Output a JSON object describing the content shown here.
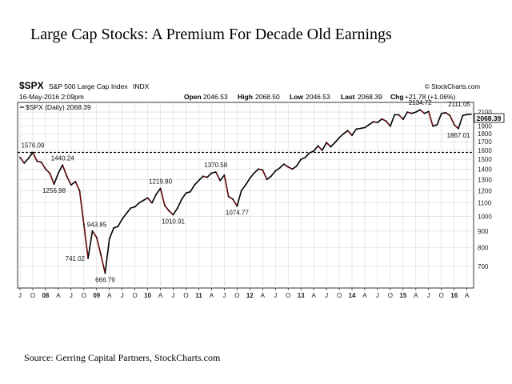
{
  "slide": {
    "title": "Large Cap Stocks: A Premium For Decade Old Earnings",
    "source": "Source: Gerring Capital Partners, StockCharts.com"
  },
  "header": {
    "symbol": "$SPX",
    "name": "S&P 500 Large Cap Index",
    "exchange": "INDX",
    "watermark": "© StockCharts.com",
    "date": "16-May-2016 2:09pm",
    "open_label": "Open",
    "open_value": "2046.53",
    "high_label": "High",
    "high_value": "2068.50",
    "low_label": "Low",
    "low_value": "2046.53",
    "last_label": "Last",
    "last_value": "2068.39",
    "chg_label": "Chg",
    "chg_value": "+21.78 (+1.06%)",
    "legend": "$SPX (Daily) 2068.39",
    "price_box": "2068.39"
  },
  "colors": {
    "price_line": "#000000",
    "down_days": "#cc0000",
    "grid": "#d8d8d8",
    "reference_line": "#000000",
    "price_box": "#ffffff"
  },
  "chart_data": {
    "type": "line",
    "scale": "log",
    "ylim": [
      600,
      2250
    ],
    "xlim": [
      "2007-07",
      "2016-05"
    ],
    "grid": true,
    "reference_line": 1576.09,
    "y_ticks": [
      700,
      800,
      900,
      1000,
      1100,
      1200,
      1300,
      1400,
      1500,
      1600,
      1700,
      1800,
      1900,
      2000,
      2100
    ],
    "x_tick_labels": [
      {
        "label": "J",
        "date": "2007-07",
        "bold": false
      },
      {
        "label": "O",
        "date": "2007-10",
        "bold": false
      },
      {
        "label": "08",
        "date": "2008-01",
        "bold": true
      },
      {
        "label": "A",
        "date": "2008-04",
        "bold": false
      },
      {
        "label": "J",
        "date": "2008-07",
        "bold": false
      },
      {
        "label": "O",
        "date": "2008-10",
        "bold": false
      },
      {
        "label": "09",
        "date": "2009-01",
        "bold": true
      },
      {
        "label": "A",
        "date": "2009-04",
        "bold": false
      },
      {
        "label": "J",
        "date": "2009-07",
        "bold": false
      },
      {
        "label": "O",
        "date": "2009-10",
        "bold": false
      },
      {
        "label": "10",
        "date": "2010-01",
        "bold": true
      },
      {
        "label": "A",
        "date": "2010-04",
        "bold": false
      },
      {
        "label": "J",
        "date": "2010-07",
        "bold": false
      },
      {
        "label": "O",
        "date": "2010-10",
        "bold": false
      },
      {
        "label": "11",
        "date": "2011-01",
        "bold": true
      },
      {
        "label": "A",
        "date": "2011-04",
        "bold": false
      },
      {
        "label": "J",
        "date": "2011-07",
        "bold": false
      },
      {
        "label": "O",
        "date": "2011-10",
        "bold": false
      },
      {
        "label": "12",
        "date": "2012-01",
        "bold": true
      },
      {
        "label": "A",
        "date": "2012-04",
        "bold": false
      },
      {
        "label": "J",
        "date": "2012-07",
        "bold": false
      },
      {
        "label": "O",
        "date": "2012-10",
        "bold": false
      },
      {
        "label": "13",
        "date": "2013-01",
        "bold": true
      },
      {
        "label": "A",
        "date": "2013-04",
        "bold": false
      },
      {
        "label": "J",
        "date": "2013-07",
        "bold": false
      },
      {
        "label": "O",
        "date": "2013-10",
        "bold": false
      },
      {
        "label": "14",
        "date": "2014-01",
        "bold": true
      },
      {
        "label": "A",
        "date": "2014-04",
        "bold": false
      },
      {
        "label": "J",
        "date": "2014-07",
        "bold": false
      },
      {
        "label": "O",
        "date": "2014-10",
        "bold": false
      },
      {
        "label": "15",
        "date": "2015-01",
        "bold": true
      },
      {
        "label": "A",
        "date": "2015-04",
        "bold": false
      },
      {
        "label": "J",
        "date": "2015-07",
        "bold": false
      },
      {
        "label": "O",
        "date": "2015-10",
        "bold": false
      },
      {
        "label": "16",
        "date": "2016-01",
        "bold": true
      },
      {
        "label": "A",
        "date": "2016-04",
        "bold": false
      }
    ],
    "series": [
      {
        "points": [
          [
            "2007-07",
            1520
          ],
          [
            "2007-08",
            1460
          ],
          [
            "2007-09",
            1510
          ],
          [
            "2007-10",
            1576.09
          ],
          [
            "2007-11",
            1480
          ],
          [
            "2007-12",
            1470
          ],
          [
            "2008-01",
            1400
          ],
          [
            "2008-02",
            1360
          ],
          [
            "2008-03",
            1256.98
          ],
          [
            "2008-04",
            1360
          ],
          [
            "2008-05",
            1440.24
          ],
          [
            "2008-06",
            1330
          ],
          [
            "2008-07",
            1250
          ],
          [
            "2008-08",
            1280
          ],
          [
            "2008-09",
            1200
          ],
          [
            "2008-10",
            943.85
          ],
          [
            "2008-11",
            741.02
          ],
          [
            "2008-12",
            900
          ],
          [
            "2009-01",
            860
          ],
          [
            "2009-02",
            760
          ],
          [
            "2009-03",
            666.79
          ],
          [
            "2009-04",
            850
          ],
          [
            "2009-05",
            920
          ],
          [
            "2009-06",
            930
          ],
          [
            "2009-07",
            980
          ],
          [
            "2009-08",
            1020
          ],
          [
            "2009-09",
            1060
          ],
          [
            "2009-10",
            1070
          ],
          [
            "2009-11",
            1100
          ],
          [
            "2009-12",
            1120
          ],
          [
            "2010-01",
            1140
          ],
          [
            "2010-02",
            1100
          ],
          [
            "2010-03",
            1170
          ],
          [
            "2010-04",
            1219.8
          ],
          [
            "2010-05",
            1080
          ],
          [
            "2010-06",
            1040
          ],
          [
            "2010-07",
            1010.91
          ],
          [
            "2010-08",
            1060
          ],
          [
            "2010-09",
            1130
          ],
          [
            "2010-10",
            1180
          ],
          [
            "2010-11",
            1190
          ],
          [
            "2010-12",
            1250
          ],
          [
            "2011-01",
            1290
          ],
          [
            "2011-02",
            1330
          ],
          [
            "2011-03",
            1320
          ],
          [
            "2011-04",
            1360
          ],
          [
            "2011-05",
            1370.58
          ],
          [
            "2011-06",
            1290
          ],
          [
            "2011-07",
            1340
          ],
          [
            "2011-08",
            1150
          ],
          [
            "2011-09",
            1130
          ],
          [
            "2011-10",
            1074.77
          ],
          [
            "2011-11",
            1200
          ],
          [
            "2011-12",
            1250
          ],
          [
            "2012-01",
            1310
          ],
          [
            "2012-02",
            1360
          ],
          [
            "2012-03",
            1400
          ],
          [
            "2012-04",
            1390
          ],
          [
            "2012-05",
            1300
          ],
          [
            "2012-06",
            1330
          ],
          [
            "2012-07",
            1380
          ],
          [
            "2012-08",
            1410
          ],
          [
            "2012-09",
            1450
          ],
          [
            "2012-10",
            1420
          ],
          [
            "2012-11",
            1400
          ],
          [
            "2012-12",
            1430
          ],
          [
            "2013-01",
            1500
          ],
          [
            "2013-02",
            1520
          ],
          [
            "2013-03",
            1570
          ],
          [
            "2013-04",
            1590
          ],
          [
            "2013-05",
            1650
          ],
          [
            "2013-06",
            1600
          ],
          [
            "2013-07",
            1690
          ],
          [
            "2013-08",
            1640
          ],
          [
            "2013-09",
            1690
          ],
          [
            "2013-10",
            1750
          ],
          [
            "2013-11",
            1800
          ],
          [
            "2013-12",
            1840
          ],
          [
            "2014-01",
            1780
          ],
          [
            "2014-02",
            1860
          ],
          [
            "2014-03",
            1870
          ],
          [
            "2014-04",
            1880
          ],
          [
            "2014-05",
            1920
          ],
          [
            "2014-06",
            1960
          ],
          [
            "2014-07",
            1950
          ],
          [
            "2014-08",
            2000
          ],
          [
            "2014-09",
            1970
          ],
          [
            "2014-10",
            1900
          ],
          [
            "2014-11",
            2060
          ],
          [
            "2014-12",
            2060
          ],
          [
            "2015-01",
            1995
          ],
          [
            "2015-02",
            2100
          ],
          [
            "2015-03",
            2080
          ],
          [
            "2015-04",
            2100
          ],
          [
            "2015-05",
            2134.72
          ],
          [
            "2015-06",
            2080
          ],
          [
            "2015-07",
            2110
          ],
          [
            "2015-08",
            1900
          ],
          [
            "2015-09",
            1920
          ],
          [
            "2015-10",
            2080
          ],
          [
            "2015-11",
            2090
          ],
          [
            "2015-12",
            2050
          ],
          [
            "2016-01",
            1920
          ],
          [
            "2016-02",
            1867.01
          ],
          [
            "2016-03",
            2050
          ],
          [
            "2016-04",
            2065
          ],
          [
            "2016-05",
            2068.39
          ]
        ]
      }
    ],
    "annotations": [
      {
        "text": "1576.09",
        "date": "2007-10",
        "value": 1576.09,
        "pos": "above"
      },
      {
        "text": "1440.24",
        "date": "2008-05",
        "value": 1440.24,
        "pos": "above"
      },
      {
        "text": "1256.98",
        "date": "2008-03",
        "value": 1256.98,
        "pos": "below"
      },
      {
        "text": "943.85",
        "date": "2008-10",
        "value": 943.85,
        "pos": "right"
      },
      {
        "text": "741.02",
        "date": "2008-11",
        "value": 741.02,
        "pos": "left"
      },
      {
        "text": "666.79",
        "date": "2009-03",
        "value": 666.79,
        "pos": "below"
      },
      {
        "text": "1219.80",
        "date": "2010-04",
        "value": 1219.8,
        "pos": "above"
      },
      {
        "text": "1010.91",
        "date": "2010-07",
        "value": 1010.91,
        "pos": "below"
      },
      {
        "text": "1370.58",
        "date": "2011-05",
        "value": 1370.58,
        "pos": "above"
      },
      {
        "text": "1074.77",
        "date": "2011-10",
        "value": 1074.77,
        "pos": "below"
      },
      {
        "text": "2134.72",
        "date": "2015-05",
        "value": 2134.72,
        "pos": "above"
      },
      {
        "text": "1867.01",
        "date": "2016-02",
        "value": 1867.01,
        "pos": "below"
      },
      {
        "text": "2111.05",
        "date": "2016-05",
        "value": 2111.05,
        "pos": "above"
      }
    ]
  }
}
